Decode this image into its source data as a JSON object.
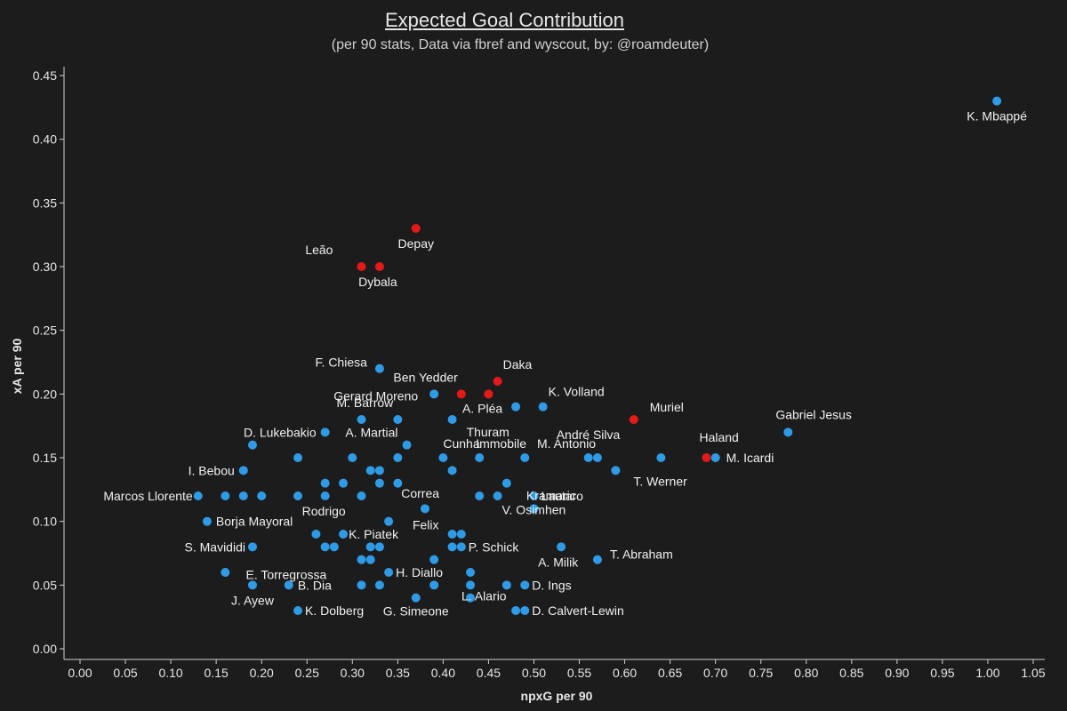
{
  "chart_data": {
    "type": "scatter",
    "title": "Expected Goal Contribution",
    "subtitle": "(per 90 stats, Data via fbref and wyscout, by: @roamdeuter)",
    "xlabel": "npxG per 90",
    "ylabel": "xA per 90",
    "xlim": [
      0,
      1.05
    ],
    "ylim": [
      0,
      0.45
    ],
    "xticks": [
      "0.00",
      "0.05",
      "0.10",
      "0.15",
      "0.20",
      "0.25",
      "0.30",
      "0.35",
      "0.40",
      "0.45",
      "0.50",
      "0.55",
      "0.60",
      "0.65",
      "0.70",
      "0.75",
      "0.80",
      "0.85",
      "0.90",
      "0.95",
      "1.00",
      "1.05"
    ],
    "yticks": [
      "0.00",
      "0.05",
      "0.10",
      "0.15",
      "0.20",
      "0.25",
      "0.30",
      "0.35",
      "0.40",
      "0.45"
    ],
    "grid": false,
    "colors": {
      "default": "#2f9be6",
      "highlight": "#e61919"
    },
    "points": [
      {
        "x": 1.01,
        "y": 0.43,
        "label": "K. Mbappé",
        "color": "blue"
      },
      {
        "x": 0.37,
        "y": 0.33,
        "label": "Depay",
        "color": "red"
      },
      {
        "x": 0.31,
        "y": 0.3,
        "label": "Leão",
        "color": "red"
      },
      {
        "x": 0.33,
        "y": 0.3,
        "label": "Dybala",
        "color": "red"
      },
      {
        "x": 0.33,
        "y": 0.22,
        "label": "F. Chiesa",
        "color": "blue"
      },
      {
        "x": 0.42,
        "y": 0.2,
        "label": "Ben Yedder",
        "color": "red"
      },
      {
        "x": 0.46,
        "y": 0.21,
        "label": "Daka",
        "color": "red"
      },
      {
        "x": 0.45,
        "y": 0.2,
        "label": "",
        "color": "red"
      },
      {
        "x": 0.39,
        "y": 0.2,
        "label": "Gerard Moreno",
        "color": "blue"
      },
      {
        "x": 0.51,
        "y": 0.19,
        "label": "K. Volland",
        "color": "blue"
      },
      {
        "x": 0.48,
        "y": 0.19,
        "label": "A. Pléa",
        "color": "blue"
      },
      {
        "x": 0.31,
        "y": 0.18,
        "label": "M. Barrow",
        "color": "blue"
      },
      {
        "x": 0.35,
        "y": 0.18,
        "label": "",
        "color": "blue"
      },
      {
        "x": 0.41,
        "y": 0.18,
        "label": "Thuram",
        "color": "blue"
      },
      {
        "x": 0.61,
        "y": 0.18,
        "label": "Muriel",
        "color": "red"
      },
      {
        "x": 0.78,
        "y": 0.17,
        "label": "Gabriel Jesus",
        "color": "blue"
      },
      {
        "x": 0.27,
        "y": 0.17,
        "label": "D. Lukebakio",
        "color": "blue"
      },
      {
        "x": 0.19,
        "y": 0.16,
        "label": "",
        "color": "blue"
      },
      {
        "x": 0.36,
        "y": 0.16,
        "label": "A. Martial",
        "color": "blue"
      },
      {
        "x": 0.24,
        "y": 0.15,
        "label": "",
        "color": "blue"
      },
      {
        "x": 0.3,
        "y": 0.15,
        "label": "",
        "color": "blue"
      },
      {
        "x": 0.35,
        "y": 0.15,
        "label": "",
        "color": "blue"
      },
      {
        "x": 0.4,
        "y": 0.15,
        "label": "Cunha",
        "color": "blue"
      },
      {
        "x": 0.44,
        "y": 0.15,
        "label": "Immobile",
        "color": "blue"
      },
      {
        "x": 0.49,
        "y": 0.15,
        "label": "",
        "color": "blue"
      },
      {
        "x": 0.56,
        "y": 0.15,
        "label": "André Silva",
        "color": "blue"
      },
      {
        "x": 0.57,
        "y": 0.15,
        "label": "M. Antonio",
        "color": "blue"
      },
      {
        "x": 0.64,
        "y": 0.15,
        "label": "",
        "color": "blue"
      },
      {
        "x": 0.69,
        "y": 0.15,
        "label": "Haland",
        "color": "red"
      },
      {
        "x": 0.7,
        "y": 0.15,
        "label": "M. Icardi",
        "color": "blue"
      },
      {
        "x": 0.18,
        "y": 0.14,
        "label": "I. Bebou",
        "color": "blue"
      },
      {
        "x": 0.32,
        "y": 0.14,
        "label": "",
        "color": "blue"
      },
      {
        "x": 0.33,
        "y": 0.14,
        "label": "",
        "color": "blue"
      },
      {
        "x": 0.41,
        "y": 0.14,
        "label": "",
        "color": "blue"
      },
      {
        "x": 0.59,
        "y": 0.14,
        "label": "T. Werner",
        "color": "blue"
      },
      {
        "x": 0.27,
        "y": 0.13,
        "label": "",
        "color": "blue"
      },
      {
        "x": 0.29,
        "y": 0.13,
        "label": "",
        "color": "blue"
      },
      {
        "x": 0.33,
        "y": 0.13,
        "label": "",
        "color": "blue"
      },
      {
        "x": 0.35,
        "y": 0.13,
        "label": "",
        "color": "blue"
      },
      {
        "x": 0.47,
        "y": 0.13,
        "label": "Kramaric",
        "color": "blue"
      },
      {
        "x": 0.13,
        "y": 0.12,
        "label": "Marcos Llorente",
        "color": "blue"
      },
      {
        "x": 0.16,
        "y": 0.12,
        "label": "",
        "color": "blue"
      },
      {
        "x": 0.18,
        "y": 0.12,
        "label": "",
        "color": "blue"
      },
      {
        "x": 0.2,
        "y": 0.12,
        "label": "",
        "color": "blue"
      },
      {
        "x": 0.24,
        "y": 0.12,
        "label": "",
        "color": "blue"
      },
      {
        "x": 0.27,
        "y": 0.12,
        "label": "Rodrigo",
        "color": "blue"
      },
      {
        "x": 0.31,
        "y": 0.12,
        "label": "",
        "color": "blue"
      },
      {
        "x": 0.44,
        "y": 0.12,
        "label": "Correa",
        "color": "blue"
      },
      {
        "x": 0.46,
        "y": 0.12,
        "label": "",
        "color": "blue"
      },
      {
        "x": 0.5,
        "y": 0.12,
        "label": "Lautaro",
        "color": "blue"
      },
      {
        "x": 0.38,
        "y": 0.11,
        "label": "Felix",
        "color": "blue"
      },
      {
        "x": 0.5,
        "y": 0.11,
        "label": "V. Osimhen",
        "color": "blue"
      },
      {
        "x": 0.14,
        "y": 0.1,
        "label": "Borja Mayoral",
        "color": "blue"
      },
      {
        "x": 0.34,
        "y": 0.1,
        "label": "",
        "color": "blue"
      },
      {
        "x": 0.26,
        "y": 0.09,
        "label": "",
        "color": "blue"
      },
      {
        "x": 0.29,
        "y": 0.09,
        "label": "K. Piatek",
        "color": "blue"
      },
      {
        "x": 0.41,
        "y": 0.09,
        "label": "",
        "color": "blue"
      },
      {
        "x": 0.42,
        "y": 0.09,
        "label": "",
        "color": "blue"
      },
      {
        "x": 0.19,
        "y": 0.08,
        "label": "S. Mavididi",
        "color": "blue"
      },
      {
        "x": 0.27,
        "y": 0.08,
        "label": "",
        "color": "blue"
      },
      {
        "x": 0.28,
        "y": 0.08,
        "label": "",
        "color": "blue"
      },
      {
        "x": 0.32,
        "y": 0.08,
        "label": "",
        "color": "blue"
      },
      {
        "x": 0.33,
        "y": 0.08,
        "label": "",
        "color": "blue"
      },
      {
        "x": 0.41,
        "y": 0.08,
        "label": "",
        "color": "blue"
      },
      {
        "x": 0.42,
        "y": 0.08,
        "label": "P. Schick",
        "color": "blue"
      },
      {
        "x": 0.53,
        "y": 0.08,
        "label": "A. Milik",
        "color": "blue"
      },
      {
        "x": 0.31,
        "y": 0.07,
        "label": "E. Torregrossa",
        "color": "blue"
      },
      {
        "x": 0.32,
        "y": 0.07,
        "label": "",
        "color": "blue"
      },
      {
        "x": 0.39,
        "y": 0.07,
        "label": "",
        "color": "blue"
      },
      {
        "x": 0.57,
        "y": 0.07,
        "label": "T. Abraham",
        "color": "blue"
      },
      {
        "x": 0.16,
        "y": 0.06,
        "label": "",
        "color": "blue"
      },
      {
        "x": 0.34,
        "y": 0.06,
        "label": "H. Diallo",
        "color": "blue"
      },
      {
        "x": 0.43,
        "y": 0.06,
        "label": "",
        "color": "blue"
      },
      {
        "x": 0.19,
        "y": 0.05,
        "label": "J. Ayew",
        "color": "blue"
      },
      {
        "x": 0.23,
        "y": 0.05,
        "label": "B. Dia",
        "color": "blue"
      },
      {
        "x": 0.31,
        "y": 0.05,
        "label": "",
        "color": "blue"
      },
      {
        "x": 0.33,
        "y": 0.05,
        "label": "",
        "color": "blue"
      },
      {
        "x": 0.39,
        "y": 0.05,
        "label": "",
        "color": "blue"
      },
      {
        "x": 0.43,
        "y": 0.05,
        "label": "",
        "color": "blue"
      },
      {
        "x": 0.47,
        "y": 0.05,
        "label": "",
        "color": "blue"
      },
      {
        "x": 0.49,
        "y": 0.05,
        "label": "D. Ings",
        "color": "blue"
      },
      {
        "x": 0.24,
        "y": 0.03,
        "label": "K. Dolberg",
        "color": "blue"
      },
      {
        "x": 0.37,
        "y": 0.04,
        "label": "G. Simeone",
        "color": "blue"
      },
      {
        "x": 0.43,
        "y": 0.04,
        "label": "L. Alario",
        "color": "blue"
      },
      {
        "x": 0.48,
        "y": 0.03,
        "label": "",
        "color": "blue"
      },
      {
        "x": 0.49,
        "y": 0.03,
        "label": "D. Calvert-Lewin",
        "color": "blue"
      }
    ]
  }
}
